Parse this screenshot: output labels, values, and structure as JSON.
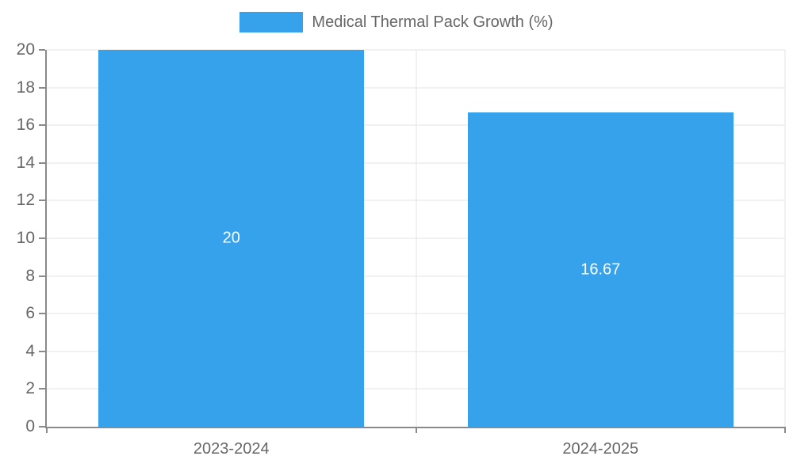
{
  "chart_data": {
    "type": "bar",
    "legend_label": "Medical Thermal Pack Growth (%)",
    "legend_position": "top",
    "categories": [
      "2023-2024",
      "2024-2025"
    ],
    "series": [
      {
        "name": "Medical Thermal Pack Growth (%)",
        "values": [
          20,
          16.67
        ]
      }
    ],
    "data_labels": [
      "20",
      "16.67"
    ],
    "title": "",
    "xlabel": "",
    "ylabel": "",
    "ylim": [
      0,
      20
    ],
    "ytick_step": 2,
    "ytick_labels": [
      "0",
      "2",
      "4",
      "6",
      "8",
      "10",
      "12",
      "14",
      "16",
      "18",
      "20"
    ],
    "grid": true,
    "bar_color": "#36A2EB",
    "bar_value_label_color": "#ffffff",
    "axis_text_color": "#666666",
    "grid_color": "#e3e3e3",
    "axis_line_color": "#8a8a8a"
  }
}
